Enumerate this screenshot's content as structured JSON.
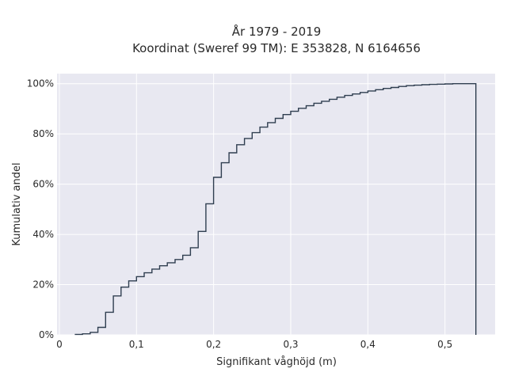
{
  "chart_data": {
    "type": "step",
    "title_lines": [
      "År 1979 - 2019",
      "Koordinat (Sweref 99 TM): E 353828, N 6164656"
    ],
    "xlabel": "Signifikant våghöjd (m)",
    "ylabel": "Kumulativ andel",
    "xlim": [
      -0.003,
      0.565
    ],
    "ylim": [
      0,
      1.04
    ],
    "xticks": [
      0,
      0.1,
      0.2,
      0.3,
      0.4,
      0.5
    ],
    "xtick_labels": [
      "0",
      "0,1",
      "0,2",
      "0,3",
      "0,4",
      "0,5"
    ],
    "yticks": [
      0,
      0.2,
      0.4,
      0.6,
      0.8,
      1.0
    ],
    "ytick_labels": [
      "0%",
      "20%",
      "40%",
      "60%",
      "80%",
      "100%"
    ],
    "grid": true,
    "background": "#e8e8f1",
    "line_color": "#2f3e50",
    "series": [
      {
        "x": [
          0.02,
          0.03,
          0.04,
          0.05,
          0.06,
          0.07,
          0.08,
          0.09,
          0.1,
          0.11,
          0.12,
          0.13,
          0.14,
          0.15,
          0.16,
          0.17,
          0.18,
          0.19,
          0.2,
          0.21,
          0.22,
          0.23,
          0.24,
          0.25,
          0.26,
          0.27,
          0.28,
          0.29,
          0.3,
          0.31,
          0.32,
          0.33,
          0.34,
          0.35,
          0.36,
          0.37,
          0.38,
          0.39,
          0.4,
          0.41,
          0.42,
          0.43,
          0.44,
          0.45,
          0.46,
          0.47,
          0.48,
          0.49,
          0.5,
          0.51,
          0.52,
          0.53,
          0.54
        ],
        "y": [
          0.002,
          0.004,
          0.01,
          0.03,
          0.09,
          0.155,
          0.19,
          0.215,
          0.232,
          0.247,
          0.262,
          0.275,
          0.287,
          0.3,
          0.317,
          0.347,
          0.412,
          0.522,
          0.627,
          0.685,
          0.725,
          0.757,
          0.782,
          0.805,
          0.827,
          0.845,
          0.862,
          0.877,
          0.89,
          0.902,
          0.912,
          0.922,
          0.93,
          0.938,
          0.946,
          0.953,
          0.959,
          0.965,
          0.971,
          0.976,
          0.981,
          0.985,
          0.989,
          0.992,
          0.994,
          0.996,
          0.997,
          0.998,
          0.999,
          1.0,
          1.0,
          1.0,
          0.0
        ]
      }
    ]
  }
}
